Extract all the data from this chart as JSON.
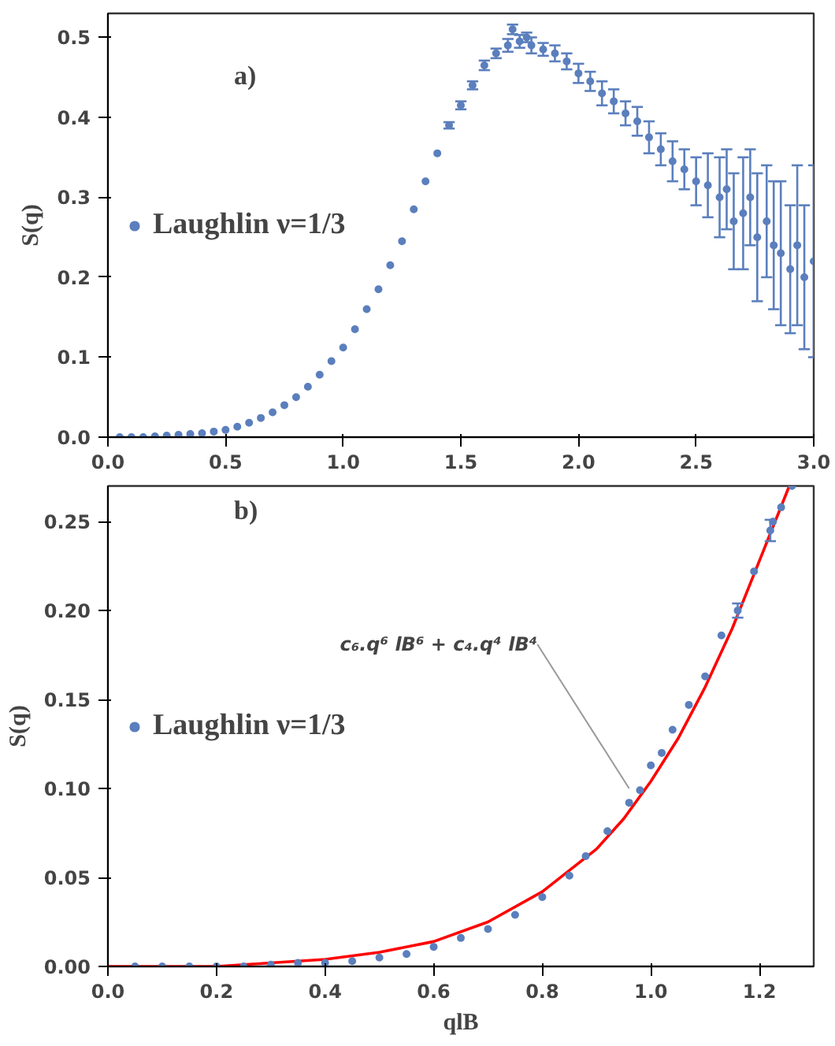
{
  "chart_data": [
    {
      "type": "scatter",
      "ylabel": "S(q)",
      "annotations": [
        "a)"
      ],
      "xlim": [
        0,
        3
      ],
      "ylim": [
        0,
        0.53
      ],
      "xticks": [
        {
          "value": 0,
          "label": "0.0"
        },
        0.5,
        {
          "value": 1,
          "label": "1.0"
        },
        1.5,
        {
          "value": 2,
          "label": "2.0"
        },
        2.5,
        {
          "value": 3,
          "label": "3.0"
        }
      ],
      "yticks": [
        {
          "value": 0,
          "label": "0.0"
        },
        0.1,
        0.2,
        0.3,
        0.4,
        0.5
      ],
      "grid": false,
      "legend": "left",
      "marker": "circle",
      "series": [
        {
          "name": "Laughlin ν=1/3",
          "color": "#5b7fbd",
          "x": [
            0.05,
            0.1,
            0.15,
            0.2,
            0.25,
            0.3,
            0.35,
            0.4,
            0.45,
            0.5,
            0.55,
            0.6,
            0.65,
            0.7,
            0.75,
            0.8,
            0.85,
            0.9,
            0.95,
            1.0,
            1.05,
            1.1,
            1.15,
            1.2,
            1.25,
            1.3,
            1.35,
            1.4,
            1.45,
            1.5,
            1.55,
            1.6,
            1.65,
            1.7,
            1.72,
            1.75,
            1.78,
            1.8,
            1.85,
            1.9,
            1.95,
            2.0,
            2.05,
            2.1,
            2.15,
            2.2,
            2.25,
            2.3,
            2.35,
            2.4,
            2.45,
            2.5,
            2.55,
            2.6,
            2.63,
            2.66,
            2.7,
            2.73,
            2.76,
            2.8,
            2.83,
            2.86,
            2.9,
            2.93,
            2.96,
            3.0
          ],
          "values": [
            0.0,
            0.0,
            0.0,
            0.001,
            0.002,
            0.003,
            0.004,
            0.005,
            0.007,
            0.009,
            0.013,
            0.018,
            0.024,
            0.031,
            0.04,
            0.05,
            0.063,
            0.078,
            0.095,
            0.112,
            0.135,
            0.16,
            0.185,
            0.215,
            0.245,
            0.285,
            0.32,
            0.355,
            0.39,
            0.415,
            0.44,
            0.465,
            0.48,
            0.49,
            0.51,
            0.495,
            0.5,
            0.49,
            0.485,
            0.48,
            0.47,
            0.455,
            0.445,
            0.43,
            0.42,
            0.405,
            0.395,
            0.375,
            0.36,
            0.345,
            0.335,
            0.32,
            0.315,
            0.3,
            0.31,
            0.27,
            0.28,
            0.3,
            0.25,
            0.27,
            0.24,
            0.23,
            0.21,
            0.24,
            0.2,
            0.22
          ],
          "errors": [
            null,
            null,
            null,
            null,
            null,
            null,
            null,
            null,
            null,
            null,
            null,
            null,
            null,
            null,
            null,
            null,
            null,
            null,
            null,
            null,
            null,
            null,
            null,
            null,
            null,
            null,
            null,
            null,
            0.004,
            0.005,
            0.005,
            0.006,
            0.006,
            0.008,
            0.006,
            0.008,
            0.006,
            0.01,
            0.008,
            0.01,
            0.01,
            0.012,
            0.012,
            0.015,
            0.015,
            0.015,
            0.018,
            0.02,
            0.02,
            0.025,
            0.025,
            0.03,
            0.04,
            0.05,
            0.05,
            0.06,
            0.07,
            0.06,
            0.08,
            0.07,
            0.08,
            0.09,
            0.08,
            0.1,
            0.09,
            0.12
          ]
        }
      ]
    },
    {
      "type": "scatter",
      "xlabel": "qlB",
      "ylabel": "S(q)",
      "annotations": [
        "b)",
        {
          "text": "c₆.q⁶ lB⁶ + c₄.q⁴ lB⁴",
          "x": 0.96,
          "y": 0.1
        }
      ],
      "xlim": [
        0,
        1.3
      ],
      "ylim": [
        0,
        0.27
      ],
      "xticks": [
        {
          "value": 0,
          "label": "0.0"
        },
        0.2,
        0.4,
        0.6,
        0.8,
        {
          "value": 1,
          "label": "1.0"
        },
        1.2
      ],
      "yticks": [
        {
          "value": 0,
          "label": "0.00"
        },
        0.05,
        {
          "value": 0.1,
          "label": "0.10"
        },
        0.15,
        {
          "value": 0.2,
          "label": "0.20"
        },
        0.25
      ],
      "grid": false,
      "legend": "left",
      "marker": "circle",
      "series": [
        {
          "type": "line",
          "marker": "none",
          "color": "#ff0000",
          "x": [
            0,
            0.2,
            0.3,
            0.4,
            0.5,
            0.6,
            0.7,
            0.8,
            0.9,
            0.95,
            1.0,
            1.05,
            1.1,
            1.15,
            1.2,
            1.255
          ],
          "values": [
            0,
            0,
            0.002,
            0.004,
            0.008,
            0.014,
            0.025,
            0.042,
            0.066,
            0.083,
            0.104,
            0.128,
            0.157,
            0.19,
            0.228,
            0.27
          ]
        },
        {
          "name": "Laughlin ν=1/3",
          "color": "#5b7fbd",
          "x": [
            0.05,
            0.1,
            0.15,
            0.2,
            0.25,
            0.3,
            0.35,
            0.4,
            0.45,
            0.5,
            0.55,
            0.6,
            0.65,
            0.7,
            0.75,
            0.8,
            0.85,
            0.88,
            0.92,
            0.96,
            0.98,
            1.0,
            1.02,
            1.04,
            1.07,
            1.1,
            1.13,
            1.16,
            1.19,
            1.22,
            1.225,
            1.24,
            1.26
          ],
          "values": [
            0,
            0,
            0,
            0,
            0,
            0.001,
            0.002,
            0.002,
            0.003,
            0.005,
            0.007,
            0.011,
            0.016,
            0.021,
            0.029,
            0.039,
            0.051,
            0.062,
            0.076,
            0.092,
            0.099,
            0.113,
            0.12,
            0.133,
            0.147,
            0.163,
            0.186,
            0.2,
            0.222,
            0.245,
            0.25,
            0.258,
            0.27
          ],
          "errors": [
            null,
            null,
            null,
            null,
            null,
            null,
            null,
            null,
            null,
            null,
            null,
            null,
            null,
            null,
            null,
            null,
            null,
            null,
            null,
            null,
            null,
            null,
            null,
            null,
            null,
            null,
            null,
            0.004,
            null,
            0.006,
            null,
            null,
            null
          ]
        }
      ]
    }
  ]
}
